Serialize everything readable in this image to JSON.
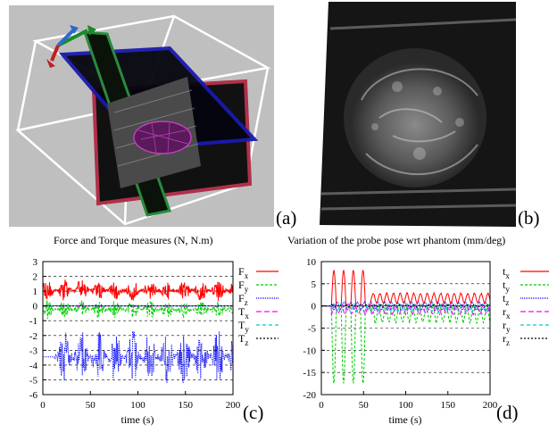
{
  "panels": {
    "a": {
      "label": "(a)"
    },
    "b": {
      "label": "(b)"
    },
    "c": {
      "label": "(c)"
    },
    "d": {
      "label": "(d)"
    }
  },
  "colors": {
    "red": "#ff0000",
    "green": "#00cc00",
    "blue": "#0000ff",
    "magenta": "#ff00ff",
    "cyan": "#00cccc",
    "black": "#000000",
    "render_background": "#bfbfbf"
  },
  "chart_data": [
    {
      "type": "line",
      "title": "Force and Torque measures (N, N.m)",
      "xlabel": "time (s)",
      "ylabel": "",
      "xlim": [
        0,
        200
      ],
      "ylim": [
        -6,
        3
      ],
      "xticks": [
        "0",
        "50",
        "100",
        "150",
        "200"
      ],
      "yticks": [
        "3",
        "2",
        "1",
        "0",
        "-1",
        "-2",
        "-3",
        "-4",
        "-5",
        "-6"
      ],
      "grid": true,
      "legend_position": "right",
      "series": [
        {
          "name": "F",
          "sub": "x",
          "color": "#ff0000",
          "dash": "",
          "approx": "oscillating band",
          "low": 0.3,
          "high": 1.8,
          "period": 18,
          "start": 0
        },
        {
          "name": "F",
          "sub": "y",
          "color": "#00cc00",
          "dash": "3,2",
          "approx": "oscillating band",
          "low": -0.9,
          "high": 0.4,
          "period": 18,
          "start": 0
        },
        {
          "name": "F",
          "sub": "z",
          "color": "#0000ff",
          "dash": "1,1",
          "approx": "oscillating band",
          "low": -5.3,
          "high": -1.6,
          "period": 18,
          "start": 12
        },
        {
          "name": "T",
          "sub": "x",
          "color": "#ff00ff",
          "dash": "6,3",
          "approx": "near zero",
          "low": -0.05,
          "high": 0.05,
          "period": 18,
          "start": 0
        },
        {
          "name": "T",
          "sub": "y",
          "color": "#00cccc",
          "dash": "4,3",
          "approx": "near zero",
          "low": -0.05,
          "high": 0.05,
          "period": 18,
          "start": 0
        },
        {
          "name": "T",
          "sub": "z",
          "color": "#000000",
          "dash": "2,2",
          "approx": "near zero",
          "low": -0.03,
          "high": 0.03,
          "period": 18,
          "start": 0
        }
      ]
    },
    {
      "type": "line",
      "title": "Variation of the probe pose wrt phantom (mm/deg)",
      "xlabel": "time (s)",
      "ylabel": "",
      "xlim": [
        0,
        200
      ],
      "ylim": [
        -20,
        10
      ],
      "xticks": [
        "0",
        "50",
        "100",
        "150",
        "200"
      ],
      "yticks": [
        "10",
        "5",
        "0",
        "-5",
        "-10",
        "-15",
        "-20"
      ],
      "grid": true,
      "legend_position": "right",
      "series": [
        {
          "name": "t",
          "sub": "x",
          "color": "#ff0000",
          "dash": "",
          "approx": "four large humps then small oscillation",
          "early_peak": 8,
          "late_low": 0.5,
          "late_high": 3
        },
        {
          "name": "t",
          "sub": "y",
          "color": "#00cc00",
          "dash": "3,2",
          "approx": "four deep dips then small oscillation",
          "early_trough": -17.5,
          "late_low": -4,
          "late_high": 0.5
        },
        {
          "name": "t",
          "sub": "z",
          "color": "#0000ff",
          "dash": "1,1",
          "approx": "small oscillation",
          "late_low": -1,
          "late_high": 1
        },
        {
          "name": "r",
          "sub": "x",
          "color": "#ff00ff",
          "dash": "6,3",
          "approx": "small oscillation",
          "late_low": -2,
          "late_high": 0.5
        },
        {
          "name": "r",
          "sub": "y",
          "color": "#00cccc",
          "dash": "4,3",
          "approx": "small oscillation",
          "late_low": -1.5,
          "late_high": 0.5
        },
        {
          "name": "r",
          "sub": "z",
          "color": "#000000",
          "dash": "2,2",
          "approx": "near zero",
          "late_low": -0.3,
          "late_high": 0.3
        }
      ]
    }
  ]
}
